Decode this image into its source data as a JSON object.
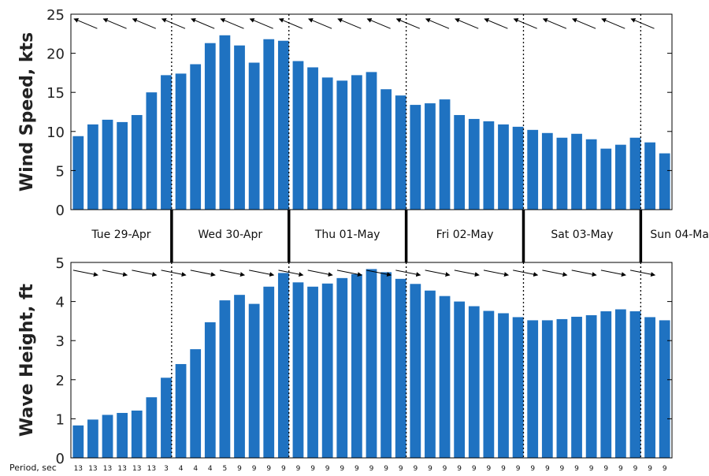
{
  "colors": {
    "bar": "#1f72c1",
    "axis": "#000000",
    "background": "#ffffff"
  },
  "chart_data": [
    {
      "type": "bar",
      "ylabel": "Wind Speed, kts",
      "ylim": [
        0,
        25
      ],
      "yticks": [
        "0",
        "5",
        "10",
        "15",
        "20",
        "25"
      ],
      "grid": false,
      "values": [
        9.4,
        10.9,
        11.5,
        11.2,
        12.1,
        15.0,
        17.2,
        17.4,
        18.6,
        21.3,
        22.3,
        21.0,
        18.8,
        21.8,
        21.6,
        19.0,
        18.2,
        16.9,
        16.5,
        17.2,
        17.6,
        15.4,
        14.6,
        13.4,
        13.6,
        14.1,
        12.1,
        11.6,
        11.3,
        10.9,
        10.6,
        10.2,
        9.8,
        9.2,
        9.7,
        9.0,
        7.8,
        8.3,
        9.2,
        8.6,
        7.2
      ],
      "arrows": "pointing toward upper-left (from the east-southeast)"
    },
    {
      "type": "bar",
      "ylabel": "Wave Height, ft",
      "ylim": [
        0,
        5
      ],
      "yticks": [
        "0",
        "1",
        "2",
        "3",
        "4",
        "5"
      ],
      "grid": false,
      "values": [
        0.83,
        0.98,
        1.1,
        1.15,
        1.21,
        1.55,
        2.05,
        2.4,
        2.78,
        3.47,
        4.03,
        4.17,
        3.94,
        4.38,
        4.73,
        4.49,
        4.38,
        4.46,
        4.6,
        4.7,
        4.83,
        4.75,
        4.58,
        4.45,
        4.28,
        4.14,
        4.0,
        3.88,
        3.76,
        3.7,
        3.6,
        3.52,
        3.52,
        3.55,
        3.61,
        3.65,
        3.75,
        3.8,
        3.75,
        3.6,
        3.52
      ],
      "arrows": "pointing toward the right (slightly downward)"
    }
  ],
  "days": [
    "Tue 29-Apr",
    "Wed 30-Apr",
    "Thu 01-May",
    "Fri 02-May",
    "Sat 03-May",
    "Sun 04-Ma"
  ],
  "period_label": "Period, sec",
  "periods": [
    "13",
    "13",
    "13",
    "13",
    "13",
    "13",
    "3",
    "4",
    "4",
    "4",
    "5",
    "9",
    "9",
    "9",
    "9",
    "9",
    "9",
    "9",
    "9",
    "9",
    "9",
    "9",
    "9",
    "9",
    "9",
    "9",
    "9",
    "9",
    "9",
    "9",
    "9",
    "9",
    "9",
    "9",
    "9",
    "9",
    "9",
    "9",
    "9",
    "9",
    "9"
  ]
}
